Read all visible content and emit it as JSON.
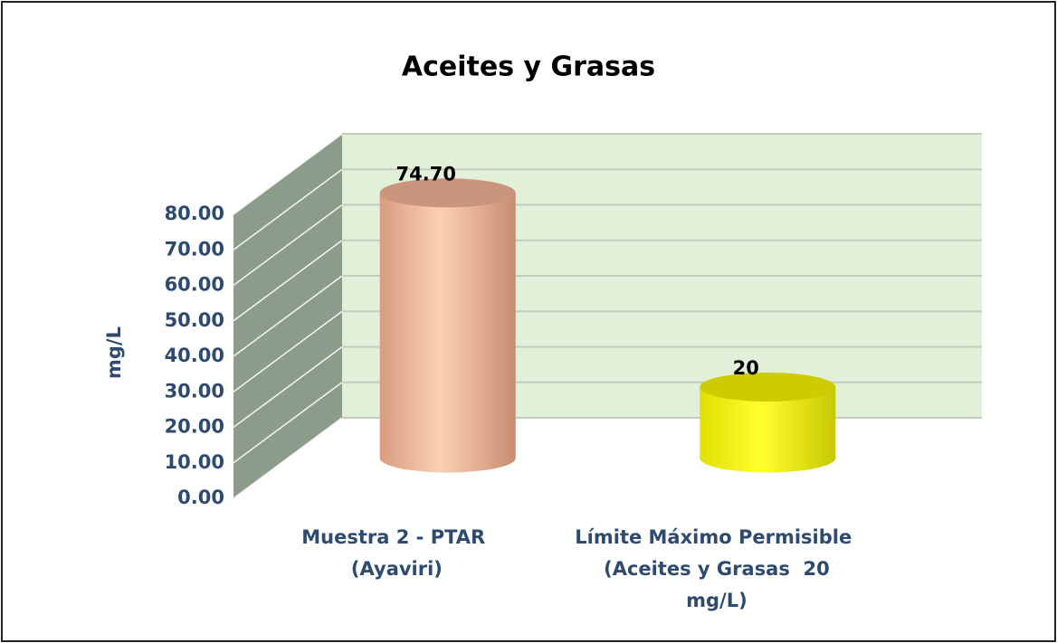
{
  "chart_data": {
    "type": "cylinder",
    "title": "Aceites y Grasas",
    "y_label": "mg/L",
    "categories": [
      "Muestra 2 - PTAR (Ayaviri)",
      "Límite Máximo Permisible (Aceites y Grasas  20 mg/L)"
    ],
    "values": [
      74.7,
      20
    ],
    "value_labels": [
      "74.70",
      "20"
    ],
    "colors": [
      "#f2b89c",
      "#ffff00"
    ],
    "ylim": [
      0,
      80
    ],
    "yticks": [
      {
        "value": 0,
        "label": "0.00"
      },
      {
        "value": 10,
        "label": "10.00"
      },
      {
        "value": 20,
        "label": "20.00"
      },
      {
        "value": 30,
        "label": "30.00"
      },
      {
        "value": 40,
        "label": "40.00"
      },
      {
        "value": 50,
        "label": "50.00"
      },
      {
        "value": 60,
        "label": "60.00"
      },
      {
        "value": 70,
        "label": "70.00"
      },
      {
        "value": 80,
        "label": "80.00"
      }
    ],
    "grid": true
  }
}
